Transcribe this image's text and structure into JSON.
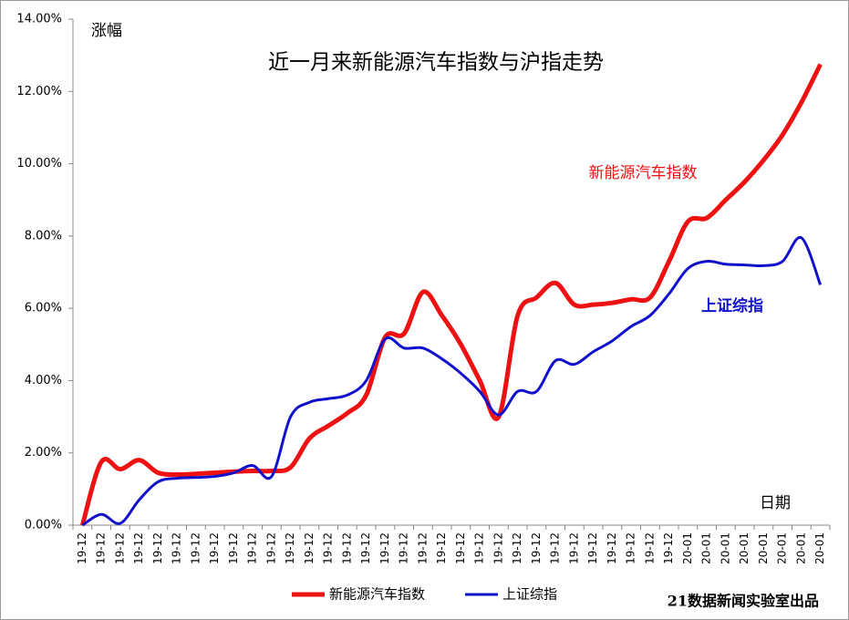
{
  "chart_data": {
    "type": "line",
    "title": "近一月来新能源汽车指数与沪指走势",
    "y_label": "涨幅",
    "x_label": "日期",
    "source": "21数据新闻实验室出品",
    "categories": [
      "19-12",
      "19-12",
      "19-12",
      "19-12",
      "19-12",
      "19-12",
      "19-12",
      "19-12",
      "19-12",
      "19-12",
      "19-12",
      "19-12",
      "19-12",
      "19-12",
      "19-12",
      "19-12",
      "19-12",
      "19-12",
      "19-12",
      "19-12",
      "19-12",
      "19-12",
      "19-12",
      "19-12",
      "19-12",
      "19-12",
      "19-12",
      "19-12",
      "19-12",
      "19-12",
      "19-12",
      "19-12",
      "20-01",
      "20-01",
      "20-01",
      "20-01",
      "20-01",
      "20-01",
      "20-01",
      "20-01"
    ],
    "series": [
      {
        "name": "新能源汽车指数",
        "color": "#ee1111",
        "annotation": "新能源汽车指数",
        "values": [
          0,
          1.75,
          1.55,
          1.8,
          1.45,
          1.4,
          1.42,
          1.45,
          1.48,
          1.5,
          1.5,
          1.6,
          2.4,
          2.75,
          3.1,
          3.6,
          5.2,
          5.3,
          6.45,
          5.8,
          5.0,
          4.0,
          3.0,
          5.8,
          6.3,
          6.7,
          6.1,
          6.1,
          6.15,
          6.25,
          6.3,
          7.3,
          8.4,
          8.5,
          9.0,
          9.5,
          10.1,
          10.8,
          11.7,
          12.75
        ]
      },
      {
        "name": "上证综指",
        "color": "#1111cc",
        "annotation": "上证综指",
        "values": [
          0,
          0.3,
          0.05,
          0.7,
          1.2,
          1.3,
          1.32,
          1.35,
          1.45,
          1.65,
          1.35,
          3.0,
          3.4,
          3.5,
          3.6,
          4.0,
          5.15,
          4.9,
          4.9,
          4.6,
          4.2,
          3.7,
          3.05,
          3.7,
          3.7,
          4.55,
          4.45,
          4.8,
          5.1,
          5.5,
          5.8,
          6.4,
          7.1,
          7.3,
          7.22,
          7.2,
          7.18,
          7.3,
          7.95,
          6.65
        ]
      }
    ],
    "ylim": [
      0,
      14
    ],
    "yticks": [
      {
        "value": 0,
        "label": "0.00%"
      },
      {
        "value": 2,
        "label": "2.00%"
      },
      {
        "value": 4,
        "label": "4.00%"
      },
      {
        "value": 6,
        "label": "6.00%"
      },
      {
        "value": 8,
        "label": "8.00%"
      },
      {
        "value": 10,
        "label": "10.00%"
      },
      {
        "value": 12,
        "label": "12.00%"
      },
      {
        "value": 14,
        "label": "14.00%"
      }
    ],
    "grid": false
  }
}
